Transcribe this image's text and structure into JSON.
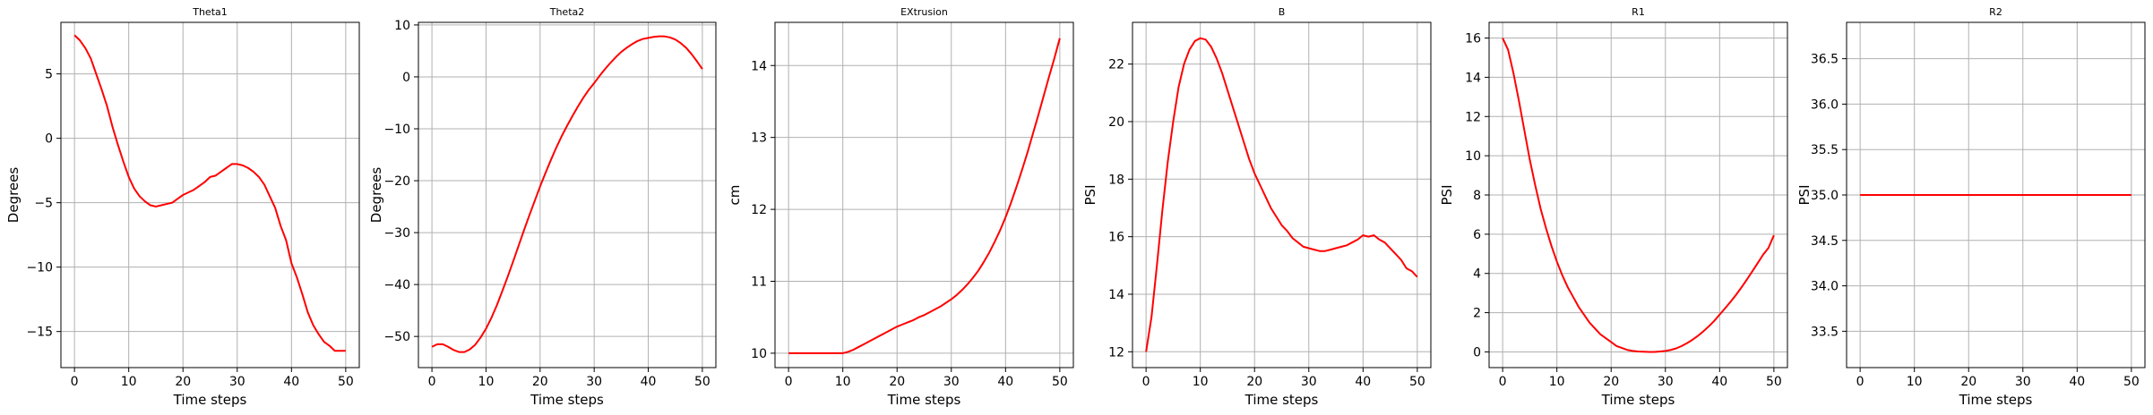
{
  "colors": {
    "line": "#ff0000",
    "grid": "#b0b0b0",
    "axis": "#000000"
  },
  "chart_data": [
    {
      "type": "line",
      "title": "Theta1",
      "xlabel": "Time steps",
      "ylabel": "Degrees",
      "xlim": [
        -2.5,
        52.5
      ],
      "ylim": [
        -17.8,
        9.0
      ],
      "xticks": [
        0,
        10,
        20,
        30,
        40,
        50
      ],
      "yticks": [
        5,
        0,
        -5,
        -10,
        -15
      ],
      "grid": true,
      "series": [
        {
          "x": [
            0,
            1,
            2,
            3,
            4,
            5,
            6,
            7,
            8,
            9,
            10,
            11,
            12,
            13,
            14,
            15,
            16,
            17,
            18,
            19,
            20,
            21,
            22,
            23,
            24,
            25,
            26,
            27,
            28,
            29,
            30,
            31,
            32,
            33,
            34,
            35,
            36,
            37,
            38,
            39,
            40,
            41,
            42,
            43,
            44,
            45,
            46,
            47,
            48,
            49,
            50
          ],
          "values": [
            8.0,
            7.6,
            7.0,
            6.2,
            5.0,
            3.8,
            2.5,
            0.9,
            -0.5,
            -1.8,
            -3.0,
            -3.9,
            -4.5,
            -4.9,
            -5.2,
            -5.3,
            -5.2,
            -5.1,
            -5.0,
            -4.7,
            -4.4,
            -4.2,
            -4.0,
            -3.7,
            -3.4,
            -3.0,
            -2.9,
            -2.6,
            -2.3,
            -2.0,
            -2.0,
            -2.1,
            -2.3,
            -2.6,
            -3.0,
            -3.6,
            -4.5,
            -5.4,
            -6.8,
            -7.9,
            -9.7,
            -10.8,
            -12.1,
            -13.5,
            -14.5,
            -15.2,
            -15.8,
            -16.1,
            -16.5,
            -16.5,
            -16.5
          ]
        }
      ]
    },
    {
      "type": "line",
      "title": "Theta2",
      "xlabel": "Time steps",
      "ylabel": "Degrees",
      "xlim": [
        -2.5,
        52.5
      ],
      "ylim": [
        -56.0,
        10.5
      ],
      "xticks": [
        0,
        10,
        20,
        30,
        40,
        50
      ],
      "yticks": [
        10,
        0,
        -10,
        -20,
        -30,
        -40,
        -50
      ],
      "grid": true,
      "series": [
        {
          "x": [
            0,
            1,
            2,
            3,
            4,
            5,
            6,
            7,
            8,
            9,
            10,
            11,
            12,
            13,
            14,
            15,
            16,
            17,
            18,
            19,
            20,
            21,
            22,
            23,
            24,
            25,
            26,
            27,
            28,
            29,
            30,
            31,
            32,
            33,
            34,
            35,
            36,
            37,
            38,
            39,
            40,
            41,
            42,
            43,
            44,
            45,
            46,
            47,
            48,
            49,
            50
          ],
          "values": [
            -52.0,
            -51.5,
            -51.5,
            -52.0,
            -52.6,
            -53.0,
            -53.0,
            -52.5,
            -51.6,
            -50.2,
            -48.5,
            -46.4,
            -44.0,
            -41.3,
            -38.5,
            -35.6,
            -32.6,
            -29.6,
            -26.7,
            -23.9,
            -21.1,
            -18.5,
            -16.0,
            -13.6,
            -11.4,
            -9.4,
            -7.5,
            -5.7,
            -4.0,
            -2.5,
            -1.2,
            0.2,
            1.5,
            2.7,
            3.8,
            4.8,
            5.6,
            6.3,
            6.9,
            7.3,
            7.5,
            7.7,
            7.8,
            7.8,
            7.6,
            7.2,
            6.5,
            5.6,
            4.4,
            3.0,
            1.5
          ]
        }
      ]
    },
    {
      "type": "line",
      "title": "EXtrusion",
      "xlabel": "Time steps",
      "ylabel": "cm",
      "xlim": [
        -2.5,
        52.5
      ],
      "ylim": [
        9.8,
        14.6
      ],
      "xticks": [
        0,
        10,
        20,
        30,
        40,
        50
      ],
      "yticks": [
        14,
        13,
        12,
        11,
        10
      ],
      "grid": true,
      "series": [
        {
          "x": [
            0,
            1,
            2,
            3,
            4,
            5,
            6,
            7,
            8,
            9,
            10,
            11,
            12,
            13,
            14,
            15,
            16,
            17,
            18,
            19,
            20,
            21,
            22,
            23,
            24,
            25,
            26,
            27,
            28,
            29,
            30,
            31,
            32,
            33,
            34,
            35,
            36,
            37,
            38,
            39,
            40,
            41,
            42,
            43,
            44,
            45,
            46,
            47,
            48,
            49,
            50
          ],
          "values": [
            10.0,
            10.0,
            10.0,
            10.0,
            10.0,
            10.0,
            10.0,
            10.0,
            10.0,
            10.0,
            10.0,
            10.02,
            10.05,
            10.09,
            10.13,
            10.17,
            10.21,
            10.25,
            10.29,
            10.33,
            10.37,
            10.4,
            10.43,
            10.46,
            10.5,
            10.53,
            10.57,
            10.61,
            10.65,
            10.7,
            10.75,
            10.81,
            10.88,
            10.96,
            11.05,
            11.15,
            11.27,
            11.4,
            11.55,
            11.71,
            11.89,
            12.09,
            12.31,
            12.54,
            12.78,
            13.04,
            13.3,
            13.57,
            13.84,
            14.1,
            14.38
          ]
        }
      ]
    },
    {
      "type": "line",
      "title": "B",
      "xlabel": "Time steps",
      "ylabel": "PSI",
      "xlim": [
        -2.5,
        52.5
      ],
      "ylim": [
        11.45,
        23.45
      ],
      "xticks": [
        0,
        10,
        20,
        30,
        40,
        50
      ],
      "yticks": [
        22,
        20,
        18,
        16,
        14,
        12
      ],
      "grid": true,
      "series": [
        {
          "x": [
            0,
            1,
            2,
            3,
            4,
            5,
            6,
            7,
            8,
            9,
            10,
            11,
            12,
            13,
            14,
            15,
            16,
            17,
            18,
            19,
            20,
            21,
            22,
            23,
            24,
            25,
            26,
            27,
            28,
            29,
            30,
            31,
            32,
            33,
            34,
            35,
            36,
            37,
            38,
            39,
            40,
            41,
            42,
            43,
            44,
            45,
            46,
            47,
            48,
            49,
            50
          ],
          "values": [
            12.0,
            13.2,
            15.0,
            16.9,
            18.6,
            20.0,
            21.2,
            22.0,
            22.5,
            22.8,
            22.9,
            22.85,
            22.6,
            22.2,
            21.7,
            21.1,
            20.5,
            19.9,
            19.3,
            18.7,
            18.2,
            17.8,
            17.4,
            17.0,
            16.7,
            16.4,
            16.2,
            15.95,
            15.8,
            15.65,
            15.6,
            15.55,
            15.5,
            15.5,
            15.55,
            15.6,
            15.65,
            15.7,
            15.8,
            15.9,
            16.05,
            16.0,
            16.05,
            15.9,
            15.8,
            15.6,
            15.4,
            15.2,
            14.9,
            14.8,
            14.6
          ]
        }
      ]
    },
    {
      "type": "line",
      "title": "R1",
      "xlabel": "Time steps",
      "ylabel": "PSI",
      "xlim": [
        -2.5,
        52.5
      ],
      "ylim": [
        -0.8,
        16.8
      ],
      "xticks": [
        0,
        10,
        20,
        30,
        40,
        50
      ],
      "yticks": [
        16,
        14,
        12,
        10,
        8,
        6,
        4,
        2,
        0
      ],
      "grid": true,
      "series": [
        {
          "x": [
            0,
            1,
            2,
            3,
            4,
            5,
            6,
            7,
            8,
            9,
            10,
            11,
            12,
            13,
            14,
            15,
            16,
            17,
            18,
            19,
            20,
            21,
            22,
            23,
            24,
            25,
            26,
            27,
            28,
            29,
            30,
            31,
            32,
            33,
            34,
            35,
            36,
            37,
            38,
            39,
            40,
            41,
            42,
            43,
            44,
            45,
            46,
            47,
            48,
            49,
            50
          ],
          "values": [
            16.0,
            15.4,
            14.2,
            12.8,
            11.3,
            9.8,
            8.5,
            7.3,
            6.3,
            5.4,
            4.6,
            3.9,
            3.3,
            2.8,
            2.3,
            1.9,
            1.5,
            1.2,
            0.9,
            0.7,
            0.5,
            0.3,
            0.2,
            0.1,
            0.05,
            0.02,
            0.01,
            0.0,
            0.0,
            0.02,
            0.05,
            0.1,
            0.18,
            0.3,
            0.45,
            0.62,
            0.82,
            1.05,
            1.3,
            1.58,
            1.9,
            2.22,
            2.55,
            2.9,
            3.28,
            3.68,
            4.1,
            4.52,
            4.95,
            5.3,
            5.95
          ]
        }
      ]
    },
    {
      "type": "line",
      "title": "R2",
      "xlabel": "Time steps",
      "ylabel": "PSI",
      "xlim": [
        -2.5,
        52.5
      ],
      "ylim": [
        33.1,
        36.9
      ],
      "xticks": [
        0,
        10,
        20,
        30,
        40,
        50
      ],
      "yticks": [
        36.5,
        36.0,
        35.5,
        35.0,
        34.5,
        34.0,
        33.5
      ],
      "grid": true,
      "series": [
        {
          "x": [
            0,
            50
          ],
          "values": [
            35.0,
            35.0
          ]
        }
      ]
    }
  ]
}
